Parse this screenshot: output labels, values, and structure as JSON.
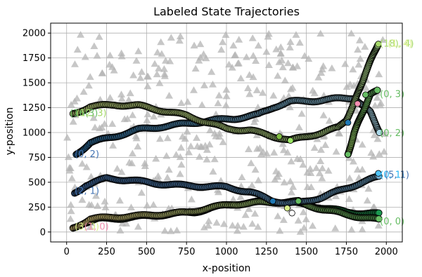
{
  "chart_data": {
    "type": "scatter",
    "title": "Labeled State Trajectories",
    "xlabel": "x-position",
    "ylabel": "y-position",
    "xlim": [
      -100,
      2100
    ],
    "ylim": [
      -100,
      2100
    ],
    "xticks": [
      0,
      250,
      500,
      750,
      1000,
      1250,
      1500,
      1750,
      2000
    ],
    "yticks": [
      0,
      250,
      500,
      750,
      1000,
      1250,
      1500,
      1750,
      2000
    ],
    "grid": true,
    "background_marker": {
      "shape": "triangle",
      "color": "#b4b4b4"
    },
    "trajectories": [
      {
        "points": [
          [
            40,
            40
          ],
          [
            100,
            90
          ],
          [
            200,
            130
          ],
          [
            350,
            140
          ],
          [
            500,
            160
          ],
          [
            650,
            180
          ],
          [
            800,
            200
          ],
          [
            900,
            240
          ],
          [
            1000,
            270
          ],
          [
            1100,
            290
          ],
          [
            1200,
            300
          ],
          [
            1300,
            305
          ],
          [
            1400,
            300
          ],
          [
            1500,
            270
          ],
          [
            1600,
            245
          ],
          [
            1750,
            200
          ],
          [
            1960,
            180
          ]
        ],
        "color_start": "#a6d96a",
        "color_end": "#1a9850"
      },
      {
        "points": [
          [
            40,
            40
          ],
          [
            150,
            130
          ],
          [
            300,
            150
          ],
          [
            450,
            160
          ],
          [
            600,
            180
          ],
          [
            750,
            195
          ],
          [
            900,
            245
          ],
          [
            1050,
            280
          ],
          [
            1200,
            295
          ],
          [
            1300,
            300
          ],
          [
            1450,
            305
          ],
          [
            1500,
            270
          ],
          [
            1600,
            230
          ],
          [
            1750,
            175
          ],
          [
            1960,
            120
          ]
        ],
        "color_start": "#fee08b",
        "color_end": "#66bd63"
      },
      {
        "points": [
          [
            50,
            390
          ],
          [
            120,
            470
          ],
          [
            250,
            540
          ],
          [
            400,
            520
          ],
          [
            550,
            490
          ],
          [
            700,
            470
          ],
          [
            850,
            460
          ],
          [
            1000,
            450
          ],
          [
            1150,
            400
          ],
          [
            1280,
            320
          ],
          [
            1380,
            290
          ],
          [
            1450,
            290
          ],
          [
            1600,
            350
          ],
          [
            1800,
            470
          ],
          [
            1960,
            560
          ]
        ],
        "color_start": "#4575b4",
        "color_end": "#74add1"
      },
      {
        "points": [
          [
            60,
            780
          ],
          [
            150,
            900
          ],
          [
            300,
            960
          ],
          [
            450,
            1030
          ],
          [
            600,
            1060
          ],
          [
            750,
            1090
          ],
          [
            900,
            1120
          ],
          [
            1050,
            1140
          ],
          [
            1200,
            1180
          ],
          [
            1300,
            1260
          ],
          [
            1400,
            1310
          ],
          [
            1550,
            1320
          ],
          [
            1700,
            1340
          ],
          [
            1800,
            1350
          ],
          [
            1900,
            1200
          ],
          [
            1960,
            1000
          ]
        ],
        "color_start": "#2c7bb6",
        "color_end": "#abd9e9"
      },
      {
        "points": [
          [
            40,
            1190
          ],
          [
            150,
            1260
          ],
          [
            300,
            1280
          ],
          [
            450,
            1270
          ],
          [
            600,
            1220
          ],
          [
            750,
            1170
          ],
          [
            900,
            1090
          ],
          [
            1000,
            1040
          ],
          [
            1150,
            1020
          ],
          [
            1300,
            960
          ],
          [
            1400,
            920
          ],
          [
            1500,
            960
          ],
          [
            1600,
            1000
          ],
          [
            1700,
            1050
          ],
          [
            1750,
            1130
          ],
          [
            1800,
            1300
          ],
          [
            1870,
            1600
          ],
          [
            1950,
            1900
          ]
        ],
        "color_start": "#d9ef8b",
        "color_end": "#addd8e"
      },
      {
        "points": [
          [
            1760,
            780
          ],
          [
            1800,
            1000
          ],
          [
            1850,
            1200
          ],
          [
            1900,
            1380
          ],
          [
            1950,
            1420
          ]
        ],
        "color_start": "#a6d96a",
        "color_end": "#66bd63"
      }
    ],
    "highlight_points": [
      {
        "x": 1820,
        "y": 1290,
        "color": "#f48fb1"
      },
      {
        "x": 1760,
        "y": 1100,
        "color": "#1f78b4"
      },
      {
        "x": 1870,
        "y": 1380,
        "color": "#66bd63"
      },
      {
        "x": 1760,
        "y": 780,
        "color": "#66bd63"
      },
      {
        "x": 1950,
        "y": 1890,
        "color": "#a6d96a"
      },
      {
        "x": 1950,
        "y": 590,
        "color": "#4fc3f7"
      },
      {
        "x": 1400,
        "y": 920,
        "color": "#9be564"
      },
      {
        "x": 1330,
        "y": 960,
        "color": "#7fbc41"
      },
      {
        "x": 1290,
        "y": 310,
        "color": "#1f78b4"
      },
      {
        "x": 1450,
        "y": 310,
        "color": "#66bd63"
      },
      {
        "x": 1380,
        "y": 240,
        "color": "#d9ef8b"
      },
      {
        "x": 1410,
        "y": 190,
        "color": "#ffffff"
      }
    ],
    "annotations": [
      {
        "text": "(0, 0)",
        "x": 1960,
        "y": 110,
        "color": "#66bd63"
      },
      {
        "text": "(0, 1)",
        "x": 1960,
        "y": 580,
        "color": "#29b6f6"
      },
      {
        "text": "(5, 1)",
        "x": 1990,
        "y": 580,
        "color": "#4575b4"
      },
      {
        "text": "(0, 2)",
        "x": 50,
        "y": 790,
        "color": "#4575b4"
      },
      {
        "text": "(2, 1)",
        "x": 50,
        "y": 420,
        "color": "#4575b4"
      },
      {
        "text": "(0, 2)",
        "x": 1960,
        "y": 1000,
        "color": "#66bd63"
      },
      {
        "text": "(0, 3)",
        "x": 1960,
        "y": 1390,
        "color": "#66bd63"
      },
      {
        "text": "(18), 4)",
        "x": 1960,
        "y": 1900,
        "color": "#a6d96a"
      },
      {
        "text": "(1, 4)",
        "x": 2010,
        "y": 1900,
        "color": "#d9ef8b"
      },
      {
        "text": "(16(3)",
        "x": 20,
        "y": 1200,
        "color": "#66bd63"
      },
      {
        "text": "(12, 3)",
        "x": 60,
        "y": 1200,
        "color": "#a6d96a"
      },
      {
        "text": "(3, 0)",
        "x": 50,
        "y": 60,
        "color": "#d9ef8b"
      },
      {
        "text": "(1, 0)",
        "x": 110,
        "y": 60,
        "color": "#f48fb1"
      }
    ]
  }
}
